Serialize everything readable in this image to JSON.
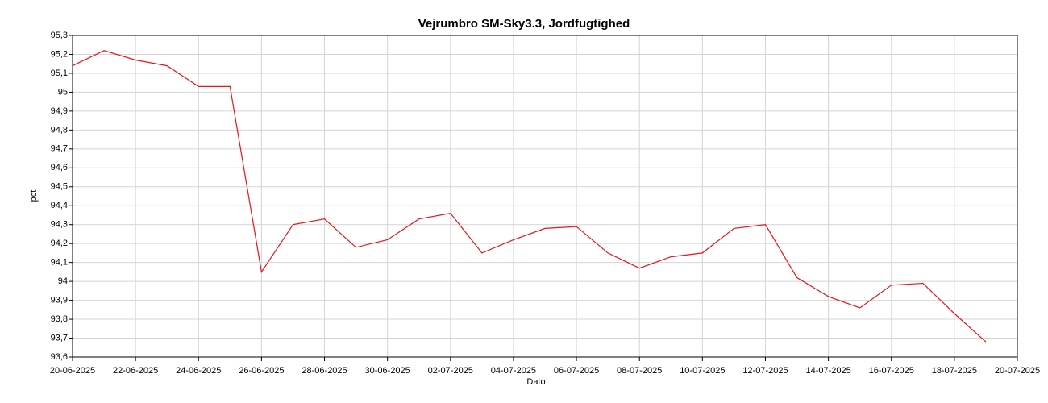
{
  "chart_data": {
    "type": "line",
    "title": "Vejrumbro SM-Sky3.3, Jordfugtighed",
    "xlabel": "Dato",
    "ylabel": "pct",
    "x": [
      "20-06-2025",
      "21-06-2025",
      "22-06-2025",
      "23-06-2025",
      "24-06-2025",
      "25-06-2025",
      "26-06-2025",
      "27-06-2025",
      "28-06-2025",
      "29-06-2025",
      "30-06-2025",
      "01-07-2025",
      "02-07-2025",
      "03-07-2025",
      "04-07-2025",
      "05-07-2025",
      "06-07-2025",
      "07-07-2025",
      "08-07-2025",
      "09-07-2025",
      "10-07-2025",
      "11-07-2025",
      "12-07-2025",
      "13-07-2025",
      "14-07-2025",
      "15-07-2025",
      "16-07-2025",
      "17-07-2025",
      "18-07-2025",
      "19-07-2025"
    ],
    "series": [
      {
        "name": "pct",
        "color": "#e8141a",
        "values": [
          95.14,
          95.22,
          95.17,
          95.14,
          95.03,
          95.03,
          94.05,
          94.3,
          94.33,
          94.18,
          94.22,
          94.33,
          94.36,
          94.15,
          94.22,
          94.28,
          94.29,
          94.15,
          94.07,
          94.13,
          94.15,
          94.28,
          94.3,
          94.02,
          93.92,
          93.86,
          93.98,
          93.99,
          93.83,
          93.68
        ]
      }
    ],
    "xlim": [
      "20-06-2025",
      "20-07-2025"
    ],
    "xticks": [
      "20-06-2025",
      "22-06-2025",
      "24-06-2025",
      "26-06-2025",
      "28-06-2025",
      "30-06-2025",
      "02-07-2025",
      "04-07-2025",
      "06-07-2025",
      "08-07-2025",
      "10-07-2025",
      "12-07-2025",
      "14-07-2025",
      "16-07-2025",
      "18-07-2025",
      "20-07-2025"
    ],
    "ylim": [
      93.6,
      95.3
    ],
    "yticks": [
      {
        "value": 93.6,
        "label": "93,6"
      },
      {
        "value": 93.7,
        "label": "93,7"
      },
      {
        "value": 93.8,
        "label": "93,8"
      },
      {
        "value": 93.9,
        "label": "93,9"
      },
      94,
      {
        "value": 94.1,
        "label": "94,1"
      },
      {
        "value": 94.2,
        "label": "94,2"
      },
      {
        "value": 94.3,
        "label": "94,3"
      },
      {
        "value": 94.4,
        "label": "94,4"
      },
      {
        "value": 94.5,
        "label": "94,5"
      },
      {
        "value": 94.6,
        "label": "94,6"
      },
      {
        "value": 94.7,
        "label": "94,7"
      },
      {
        "value": 94.8,
        "label": "94,8"
      },
      {
        "value": 94.9,
        "label": "94,9"
      },
      95,
      {
        "value": 95.1,
        "label": "95,1"
      },
      {
        "value": 95.2,
        "label": "95,2"
      },
      {
        "value": 95.3,
        "label": "95,3"
      }
    ],
    "grid": true
  }
}
